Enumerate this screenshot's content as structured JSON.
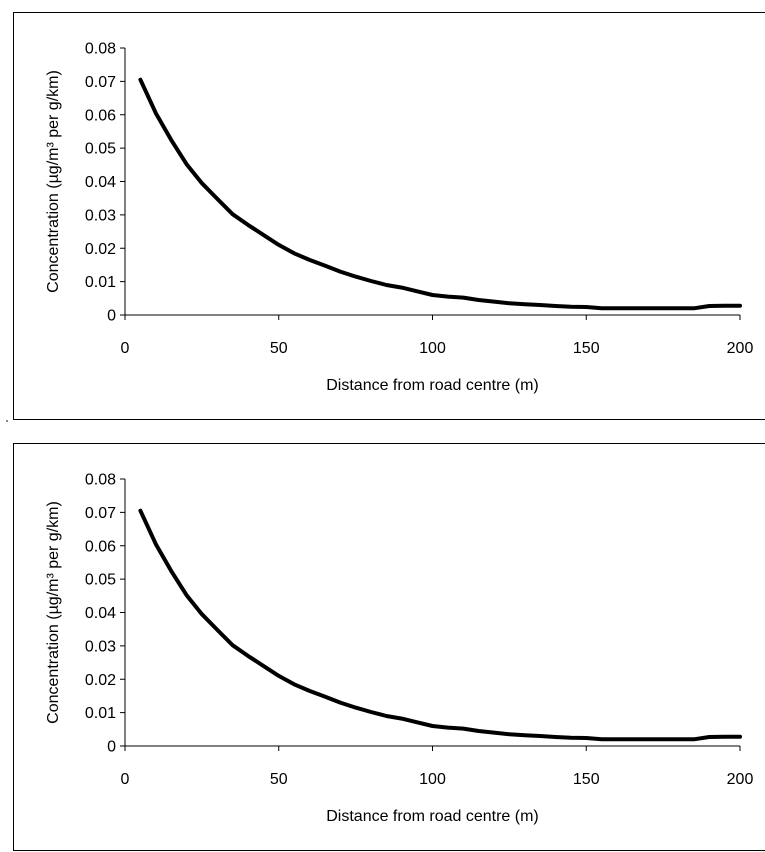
{
  "chart_data": [
    {
      "type": "line",
      "xlabel": "Distance from road centre (m)",
      "ylabel": "Concentration (µg/m³ per g/km)",
      "xlim": [
        0,
        200
      ],
      "ylim": [
        0,
        0.08
      ],
      "x_ticks": [
        "0",
        "50",
        "100",
        "150",
        "200"
      ],
      "y_ticks": [
        "0",
        "0.01",
        "0.02",
        "0.03",
        "0.04",
        "0.05",
        "0.06",
        "0.07",
        "0.08"
      ],
      "grid": false,
      "series": [
        {
          "x": [
            5,
            10,
            15,
            20,
            25,
            30,
            35,
            40,
            45,
            50,
            55,
            60,
            65,
            70,
            75,
            80,
            85,
            90,
            95,
            100,
            105,
            110,
            115,
            120,
            125,
            130,
            135,
            140,
            145,
            150,
            155,
            160,
            165,
            170,
            175,
            180,
            185,
            190,
            195,
            200
          ],
          "y": [
            0.0705,
            0.0605,
            0.0525,
            0.0452,
            0.0395,
            0.0348,
            0.0302,
            0.027,
            0.024,
            0.021,
            0.0185,
            0.0165,
            0.0148,
            0.013,
            0.0115,
            0.0102,
            0.009,
            0.0082,
            0.0071,
            0.006,
            0.0055,
            0.0052,
            0.0045,
            0.004,
            0.0035,
            0.0032,
            0.003,
            0.0027,
            0.0025,
            0.0024,
            0.002,
            0.002,
            0.002,
            0.002,
            0.002,
            0.002,
            0.002,
            0.0027,
            0.0028,
            0.0028
          ]
        }
      ]
    },
    {
      "type": "line",
      "xlabel": "Distance from road centre (m)",
      "ylabel": "Concentration (µg/m³ per g/km)",
      "xlim": [
        0,
        200
      ],
      "ylim": [
        0,
        0.08
      ],
      "x_ticks": [
        "0",
        "50",
        "100",
        "150",
        "200"
      ],
      "y_ticks": [
        "0",
        "0.01",
        "0.02",
        "0.03",
        "0.04",
        "0.05",
        "0.06",
        "0.07",
        "0.08"
      ],
      "grid": false,
      "series": [
        {
          "x": [
            5,
            10,
            15,
            20,
            25,
            30,
            35,
            40,
            45,
            50,
            55,
            60,
            65,
            70,
            75,
            80,
            85,
            90,
            95,
            100,
            105,
            110,
            115,
            120,
            125,
            130,
            135,
            140,
            145,
            150,
            155,
            160,
            165,
            170,
            175,
            180,
            185,
            190,
            195,
            200
          ],
          "y": [
            0.0705,
            0.0605,
            0.0525,
            0.0452,
            0.0395,
            0.0348,
            0.0302,
            0.027,
            0.024,
            0.021,
            0.0185,
            0.0165,
            0.0148,
            0.013,
            0.0115,
            0.0102,
            0.009,
            0.0082,
            0.0071,
            0.006,
            0.0055,
            0.0052,
            0.0045,
            0.004,
            0.0035,
            0.0032,
            0.003,
            0.0027,
            0.0025,
            0.0024,
            0.002,
            0.002,
            0.002,
            0.002,
            0.002,
            0.002,
            0.002,
            0.0027,
            0.0028,
            0.0028
          ]
        }
      ]
    }
  ]
}
